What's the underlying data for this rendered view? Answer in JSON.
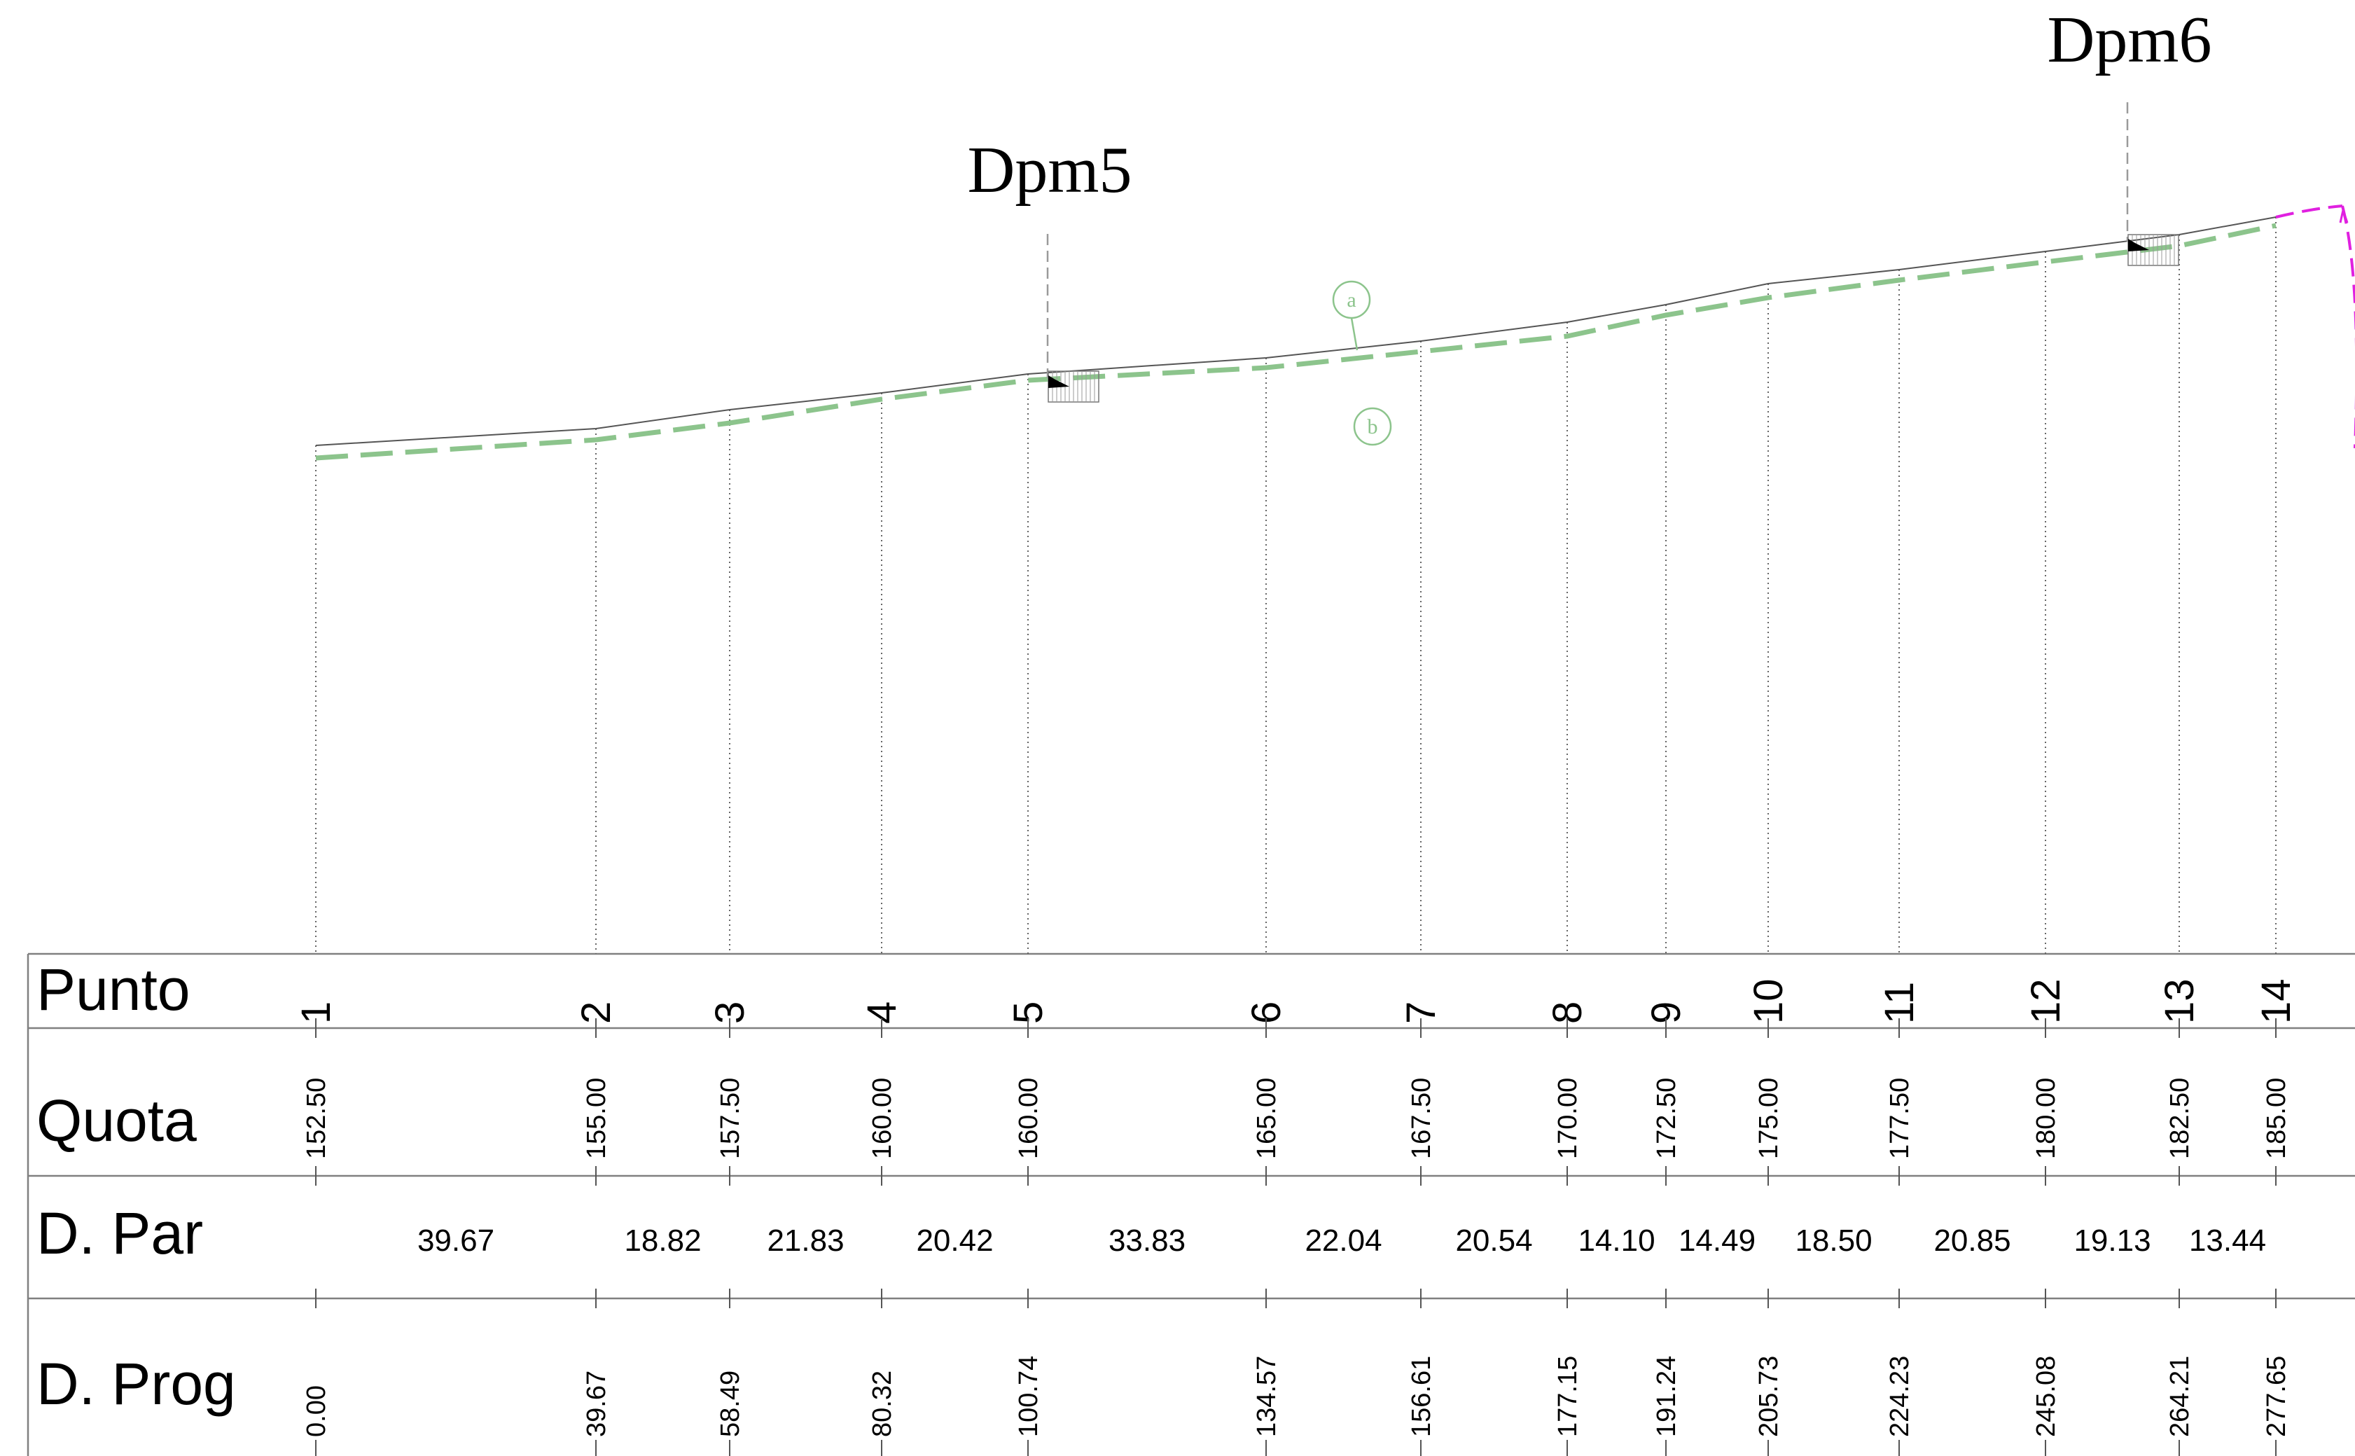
{
  "markers": {
    "dpm5": "Dpm5",
    "dpm6": "Dpm6",
    "a": "a",
    "b": "b"
  },
  "table": {
    "row_labels": {
      "punto": "Punto",
      "quota": "Quota",
      "dpar": "D. Par",
      "dprog": "D. Prog"
    },
    "points": [
      {
        "punto": "1",
        "quota": "152.50",
        "dprog": "0.00"
      },
      {
        "punto": "2",
        "quota": "155.00",
        "dprog": "39.67"
      },
      {
        "punto": "3",
        "quota": "157.50",
        "dprog": "58.49"
      },
      {
        "punto": "4",
        "quota": "160.00",
        "dprog": "80.32"
      },
      {
        "punto": "5",
        "quota": "160.00",
        "dprog": "100.74"
      },
      {
        "punto": "6",
        "quota": "165.00",
        "dprog": "134.57"
      },
      {
        "punto": "7",
        "quota": "167.50",
        "dprog": "156.61"
      },
      {
        "punto": "8",
        "quota": "170.00",
        "dprog": "177.15"
      },
      {
        "punto": "9",
        "quota": "172.50",
        "dprog": "191.24"
      },
      {
        "punto": "10",
        "quota": "175.00",
        "dprog": "205.73"
      },
      {
        "punto": "11",
        "quota": "177.50",
        "dprog": "224.23"
      },
      {
        "punto": "12",
        "quota": "180.00",
        "dprog": "245.08"
      },
      {
        "punto": "13",
        "quota": "182.50",
        "dprog": "264.21"
      },
      {
        "punto": "14",
        "quota": "185.00",
        "dprog": "277.65"
      }
    ],
    "dpar": [
      "39.67",
      "18.82",
      "21.83",
      "20.42",
      "33.83",
      "22.04",
      "20.54",
      "14.10",
      "14.49",
      "18.50",
      "20.85",
      "19.13",
      "13.44"
    ]
  },
  "colors": {
    "terrain": "#555555",
    "design_line": "#8cc48c",
    "marker_line": "#9a9a9a",
    "magenta": "#e020e0",
    "text": "#000000",
    "table_line": "#808080"
  }
}
